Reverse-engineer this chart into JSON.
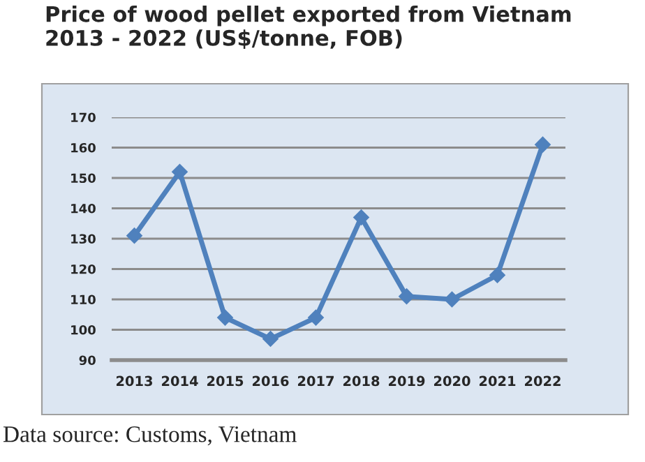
{
  "chart_data": {
    "type": "line",
    "title": "Price of wood pellet exported from Vietnam\n2013 - 2022 (US$/tonne, FOB)",
    "categories": [
      "2013",
      "2014",
      "2015",
      "2016",
      "2017",
      "2018",
      "2019",
      "2020",
      "2021",
      "2022"
    ],
    "series": [
      {
        "color": "#4f81bd",
        "values": [
          131,
          152,
          104,
          97,
          104,
          137,
          111,
          110,
          118,
          161
        ]
      }
    ],
    "ylim": [
      90,
      170
    ],
    "yticks": [
      90,
      100,
      110,
      120,
      130,
      140,
      150,
      160,
      170
    ],
    "grid": "y",
    "marker": "diamond",
    "line_style": "solid",
    "legend": false,
    "annotations": [
      "Data source: Customs, Vietnam"
    ]
  }
}
